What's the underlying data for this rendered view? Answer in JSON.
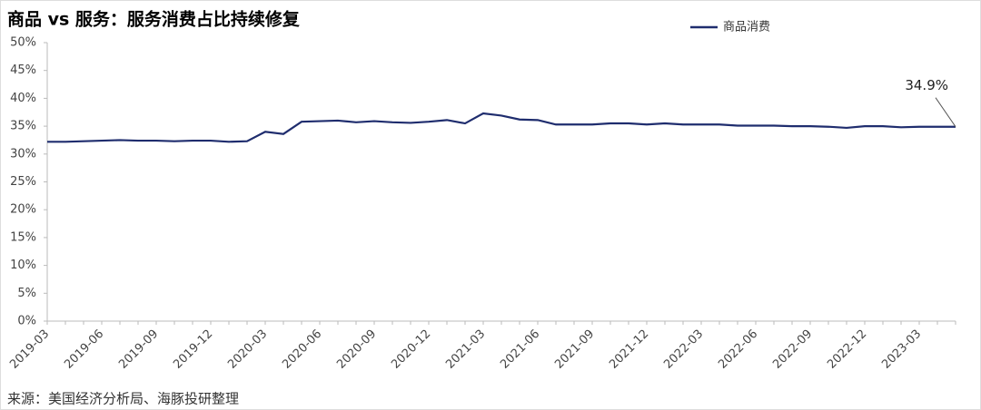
{
  "chart_data": {
    "type": "line",
    "title": "商品 vs 服务：服务消费占比持续修复",
    "categories": [
      "2019-03",
      null,
      null,
      "2019-06",
      null,
      null,
      "2019-09",
      null,
      null,
      "2019-12",
      null,
      null,
      "2020-03",
      null,
      null,
      "2020-06",
      null,
      null,
      "2020-09",
      null,
      null,
      "2020-12",
      null,
      null,
      "2021-03",
      null,
      null,
      "2021-06",
      null,
      null,
      "2021-09",
      null,
      null,
      "2021-12",
      null,
      null,
      "2022-03",
      null,
      null,
      "2022-06",
      null,
      null,
      "2022-09",
      null,
      null,
      "2022-12",
      null,
      null,
      "2023-03",
      null,
      null
    ],
    "series": [
      {
        "name": "商品消费",
        "color": "#1f2d6e",
        "values": [
          32.2,
          32.2,
          32.3,
          32.4,
          32.5,
          32.4,
          32.4,
          32.3,
          32.4,
          32.4,
          32.2,
          32.3,
          34.0,
          33.6,
          35.8,
          35.9,
          36.0,
          35.7,
          35.9,
          35.7,
          35.6,
          35.8,
          36.1,
          35.5,
          37.3,
          36.9,
          36.2,
          36.1,
          35.3,
          35.3,
          35.3,
          35.5,
          35.5,
          35.3,
          35.5,
          35.3,
          35.3,
          35.3,
          35.1,
          35.1,
          35.1,
          35.0,
          35.0,
          34.9,
          34.7,
          35.0,
          35.0,
          34.8,
          34.9,
          34.9,
          34.9
        ]
      }
    ],
    "annotation": "34.9%",
    "ylim": [
      0,
      50
    ],
    "yticks": [
      {
        "value": 0,
        "label": "0%"
      },
      {
        "value": 5,
        "label": "5%"
      },
      {
        "value": 10,
        "label": "10%"
      },
      {
        "value": 15,
        "label": "15%"
      },
      {
        "value": 20,
        "label": "20%"
      },
      {
        "value": 25,
        "label": "25%"
      },
      {
        "value": 30,
        "label": "30%"
      },
      {
        "value": 35,
        "label": "35%"
      },
      {
        "value": 40,
        "label": "40%"
      },
      {
        "value": 45,
        "label": "45%"
      },
      {
        "value": 50,
        "label": "50%"
      }
    ],
    "grid": false,
    "legend": "top-right",
    "source": "来源：美国经济分析局、海豚投研整理"
  }
}
